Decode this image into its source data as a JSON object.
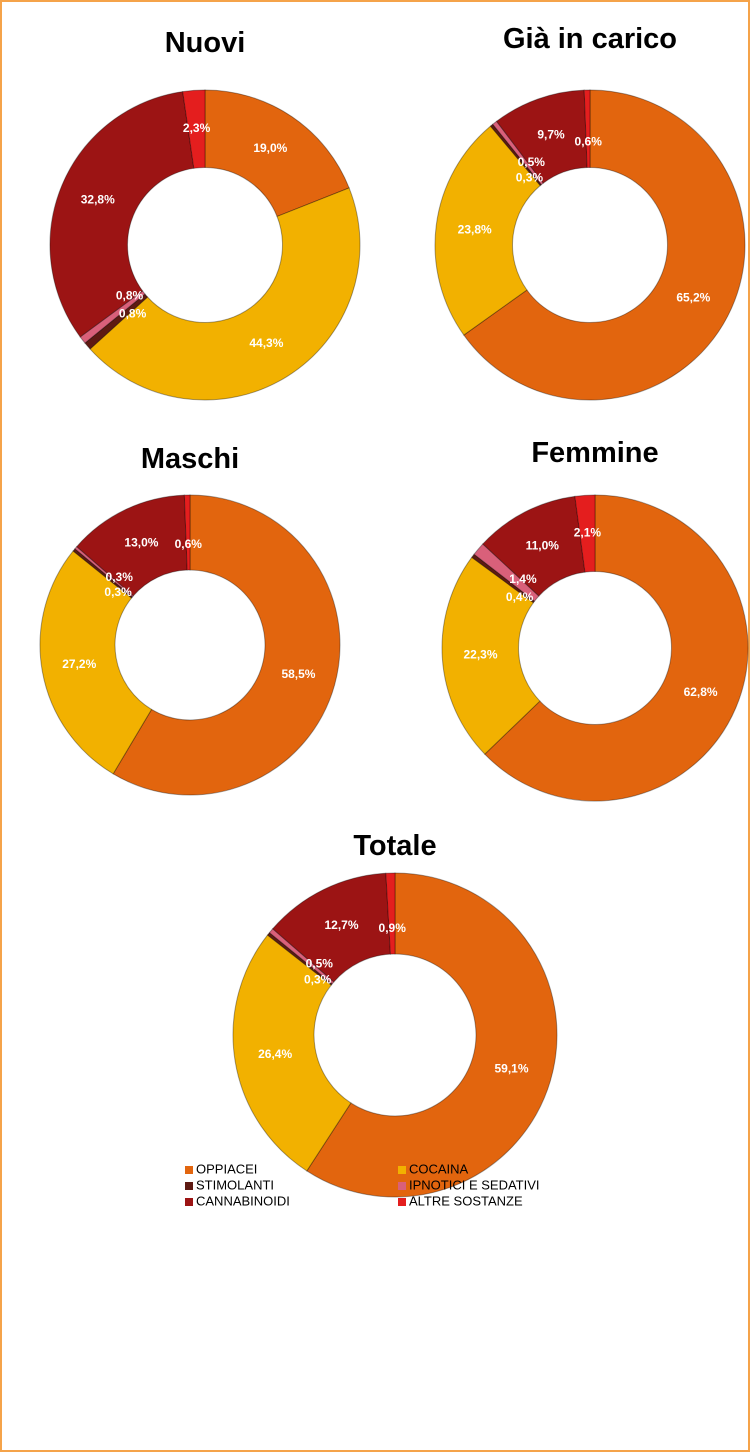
{
  "chart_data": [
    {
      "type": "donut",
      "title": "Nuovi",
      "values": [
        19.0,
        44.3,
        0.8,
        0.8,
        32.8,
        2.3
      ],
      "value_labels": [
        "19,0%",
        "44,3%",
        "0,8%",
        "0,8%",
        "32,8%",
        "2,3%"
      ]
    },
    {
      "type": "donut",
      "title": "Già in carico",
      "values": [
        65.2,
        23.8,
        0.3,
        0.5,
        9.7,
        0.6
      ],
      "value_labels": [
        "65,2%",
        "23,8%",
        "0,3%",
        "0,5%",
        "9,7%",
        "0,6%"
      ]
    },
    {
      "type": "donut",
      "title": "Maschi",
      "values": [
        58.5,
        27.2,
        0.3,
        0.3,
        13.0,
        0.6
      ],
      "value_labels": [
        "58,5%",
        "27,2%",
        "0,3%",
        "0,3%",
        "13,0%",
        "0,6%"
      ]
    },
    {
      "type": "donut",
      "title": "Femmine",
      "values": [
        62.8,
        22.3,
        0.4,
        1.4,
        11.0,
        2.1
      ],
      "value_labels": [
        "62,8%",
        "22,3%",
        "0,4%",
        "1,4%",
        "11,0%",
        "2,1%"
      ]
    },
    {
      "type": "donut",
      "title": "Totale",
      "values": [
        59.1,
        26.4,
        0.3,
        0.5,
        12.7,
        0.9
      ],
      "value_labels": [
        "59,1%",
        "26,4%",
        "0,3%",
        "0,5%",
        "12,7%",
        "0,9%"
      ]
    }
  ],
  "legend": {
    "names": [
      "OPPIACEI",
      "COCAINA",
      "STIMOLANTI",
      "IPNOTICI E SEDATIVI",
      "CANNABINOIDI",
      "ALTRE SOSTANZE"
    ],
    "colors": [
      "#e2650e",
      "#f2b100",
      "#5e1a12",
      "#d9607a",
      "#9c1414",
      "#e41e1e"
    ]
  }
}
